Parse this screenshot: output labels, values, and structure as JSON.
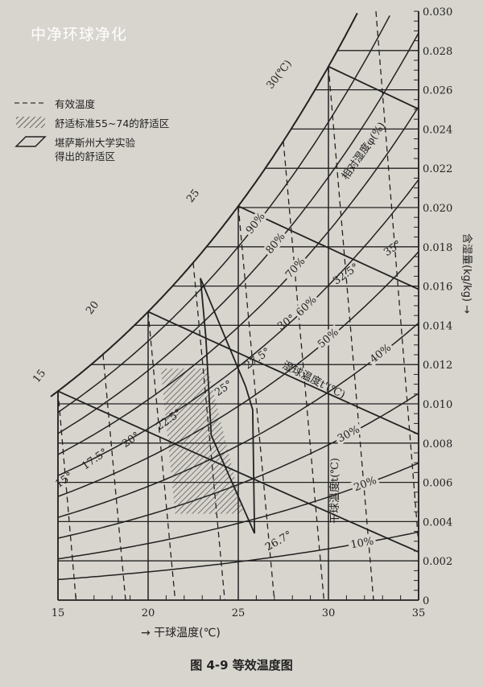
{
  "watermark": "中净环球净化",
  "caption": "图 4-9   等效温度图",
  "legend": {
    "effective_temp": "有效温度",
    "comfort_standard": "舒适标准55~74的舒适区",
    "kansas_line1": "堪萨斯州大学实验",
    "kansas_line2": "得出的舒适区"
  },
  "chart_data": {
    "type": "line",
    "title": "图 4-9 等效温度图",
    "xlabel": "→ 干球温度(℃)",
    "ylabel": "含湿量(kg/kg) →",
    "xlim": [
      15,
      35
    ],
    "ylim": [
      0,
      0.03
    ],
    "x_ticks": [
      "15",
      "20",
      "25",
      "30",
      "35"
    ],
    "x_tick_values": [
      15,
      20,
      25,
      30,
      35
    ],
    "y_ticks": [
      "0",
      "0.002",
      "0.004",
      "0.006",
      "0.008",
      "0.010",
      "0.012",
      "0.014",
      "0.016",
      "0.018",
      "0.020",
      "0.022",
      "0.024",
      "0.026",
      "0.028",
      "0.030"
    ],
    "y_tick_values": [
      0,
      0.002,
      0.004,
      0.006,
      0.008,
      0.01,
      0.012,
      0.014,
      0.016,
      0.018,
      0.02,
      0.022,
      0.024,
      0.026,
      0.028,
      0.03
    ],
    "grid": true,
    "relative_humidity": {
      "label": "相对湿度φ(%)",
      "values": [
        10,
        20,
        30,
        40,
        50,
        60,
        70,
        80,
        90
      ],
      "labels": [
        "10%",
        "20%",
        "30%",
        "40%",
        "50%",
        "60%",
        "70%",
        "80%",
        "90%"
      ]
    },
    "saturation_labels": {
      "values": [
        15,
        20,
        25,
        30
      ],
      "labels": [
        "15",
        "20",
        "25",
        "30(℃)"
      ]
    },
    "wet_bulb": {
      "label": "湿球温度t'(℃)",
      "values": [
        15,
        20,
        25,
        30
      ]
    },
    "dry_bulb": {
      "label": "干球温度t(℃)",
      "values": [
        15,
        20,
        25,
        30,
        35
      ]
    },
    "effective_temperature": {
      "legend": "有效温度",
      "style": "dashed",
      "values": [
        15,
        17.5,
        20,
        22.5,
        25,
        27.5,
        30,
        32.5,
        35
      ],
      "labels": [
        "15°",
        "17.5°",
        "20°",
        "22.5°",
        "25°",
        "27.5°",
        "30°",
        "32.5°",
        "35°"
      ],
      "extra_label": "26.7°"
    },
    "comfort_zone_standard": {
      "legend": "舒适标准55~74的舒适区",
      "style": "hatched",
      "polygon": [
        [
          20.7,
          0.0118
        ],
        [
          23.3,
          0.0118
        ],
        [
          25.3,
          0.0044
        ],
        [
          21.5,
          0.0044
        ]
      ]
    },
    "comfort_zone_kansas": {
      "legend": "堪萨斯州大学实验得出的舒适区",
      "style": "outline",
      "polygon": [
        [
          22.9,
          0.0164
        ],
        [
          25.4,
          0.0109
        ],
        [
          25.8,
          0.0097
        ],
        [
          25.9,
          0.0034
        ],
        [
          23.5,
          0.0084
        ],
        [
          23.2,
          0.0134
        ]
      ]
    }
  },
  "colors": {
    "background": "#d8d5ce",
    "ink": "#222222",
    "watermark": "#ffffff"
  }
}
